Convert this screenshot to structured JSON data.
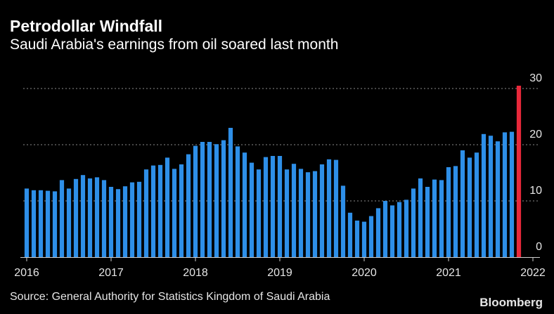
{
  "header": {
    "title": "Petrodollar Windfall",
    "subtitle": "Saudi Arabia's earnings from oil soared last month"
  },
  "footer": {
    "source": "Source: General Authority for Statistics Kingdom of Saudi Arabia",
    "brand": "Bloomberg"
  },
  "colors": {
    "background": "#000000",
    "bar": "#2e8fe8",
    "highlight": "#e8283a",
    "grid": "#8c8c8c",
    "text": "#e6e6e6"
  },
  "chart_data": {
    "type": "bar",
    "title": "Petrodollar Windfall",
    "subtitle": "Saudi Arabia's earnings from oil soared last month",
    "xlabel": "",
    "ylabel": "",
    "ylim": [
      0,
      30
    ],
    "yticks": [
      0,
      10,
      20,
      30
    ],
    "y_axis_position": "right",
    "grid": true,
    "x_start": "2016-01",
    "x_ticks": [
      {
        "label": "2016",
        "date": "2016-01"
      },
      {
        "label": "2017",
        "date": "2017-01"
      },
      {
        "label": "2018",
        "date": "2018-01"
      },
      {
        "label": "2019",
        "date": "2019-01"
      },
      {
        "label": "2020",
        "date": "2020-01"
      },
      {
        "label": "2021",
        "date": "2021-01"
      },
      {
        "label": "2022",
        "date": "2022-01"
      }
    ],
    "highlight_last": true,
    "values": [
      12.2,
      11.9,
      11.9,
      11.8,
      11.7,
      13.7,
      12.2,
      13.9,
      14.6,
      14.0,
      14.2,
      13.7,
      12.5,
      12.1,
      12.6,
      13.3,
      13.4,
      15.6,
      16.3,
      16.4,
      17.7,
      15.7,
      16.5,
      18.3,
      19.8,
      20.5,
      20.5,
      20.1,
      20.8,
      23.0,
      19.7,
      18.6,
      16.8,
      15.6,
      17.8,
      18.0,
      18.0,
      15.6,
      16.6,
      15.7,
      15.1,
      15.3,
      16.5,
      17.4,
      17.3,
      12.7,
      7.9,
      6.5,
      6.3,
      7.3,
      8.7,
      10.0,
      9.2,
      9.8,
      10.2,
      12.2,
      14.0,
      12.5,
      13.8,
      13.7,
      16.0,
      16.2,
      19.0,
      17.7,
      18.6,
      21.9,
      21.6,
      20.6,
      22.2,
      22.3,
      30.5
    ]
  }
}
